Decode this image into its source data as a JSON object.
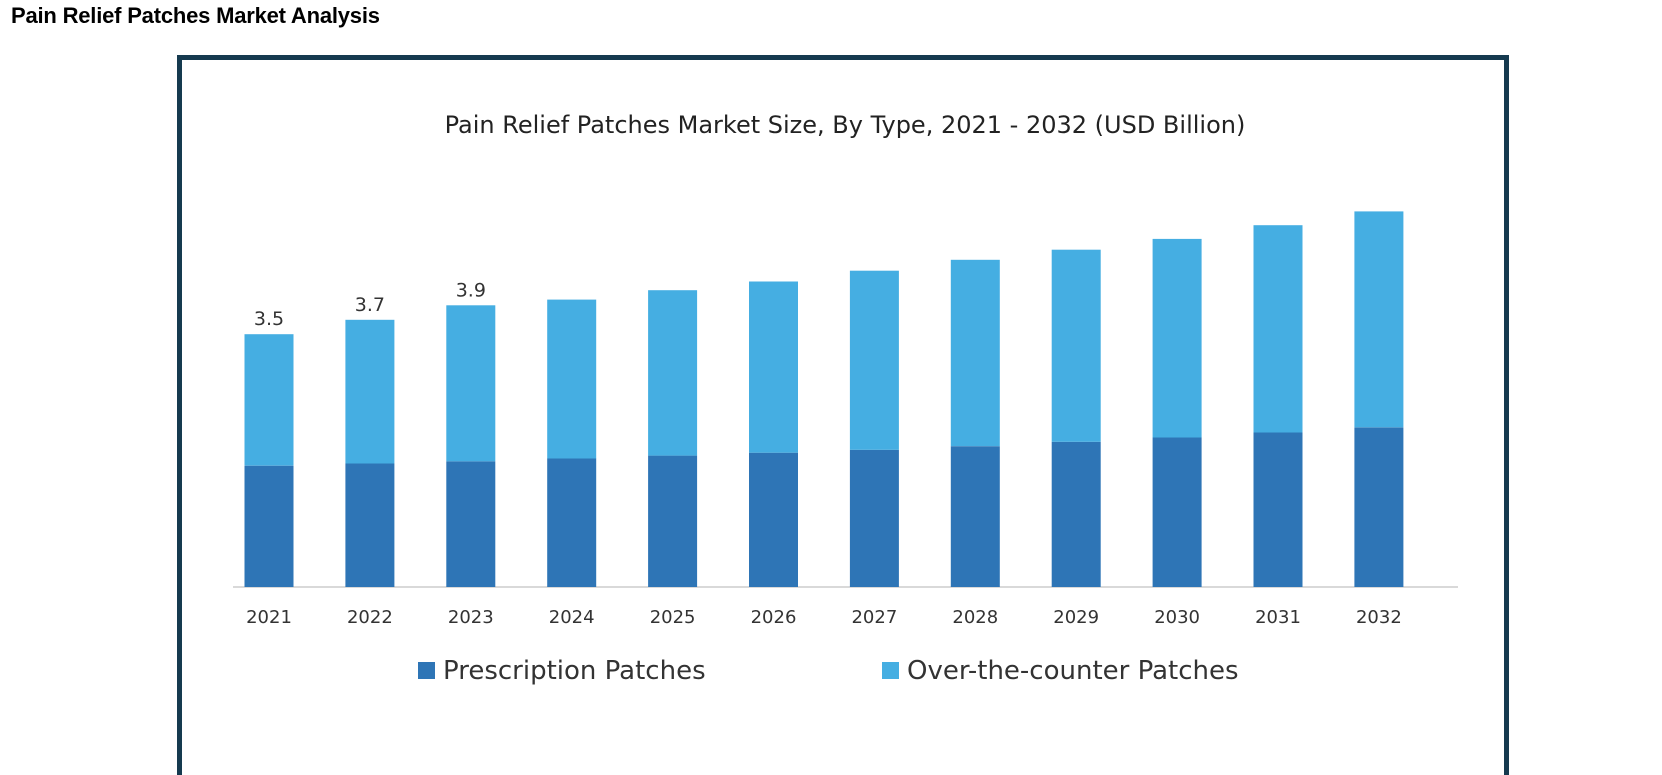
{
  "page": {
    "heading": "Pain Relief Patches Market Analysis"
  },
  "chart_data": {
    "type": "bar",
    "stacked": true,
    "title": "Pain Relief Patches Market Size, By Type, 2021 - 2032 (USD Billion)",
    "xlabel": "",
    "ylabel": "",
    "categories": [
      "2021",
      "2022",
      "2023",
      "2024",
      "2025",
      "2026",
      "2027",
      "2028",
      "2029",
      "2030",
      "2031",
      "2032"
    ],
    "series": [
      {
        "name": "Prescription Patches",
        "color": "#2e75b6",
        "values": [
          1.68,
          1.71,
          1.74,
          1.78,
          1.82,
          1.86,
          1.9,
          1.95,
          2.01,
          2.07,
          2.14,
          2.21
        ]
      },
      {
        "name": "Over-the-counter Patches",
        "color": "#45aee2",
        "values": [
          1.82,
          1.99,
          2.16,
          2.2,
          2.29,
          2.37,
          2.48,
          2.58,
          2.66,
          2.75,
          2.87,
          2.99
        ]
      }
    ],
    "data_labels": [
      "3.5",
      "3.7",
      "3.9",
      "",
      "",
      "",
      "",
      "",
      "",
      "",
      "",
      ""
    ],
    "ylim": [
      0,
      5.4
    ],
    "grid": false,
    "y_axis_visible": false,
    "legend_position": "bottom"
  }
}
